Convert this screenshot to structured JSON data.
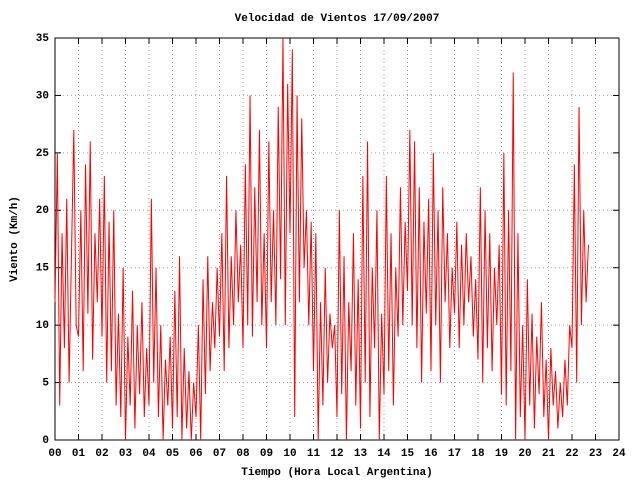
{
  "chart_data": {
    "type": "line",
    "title": "Velocidad de Vientos 17/09/2007",
    "x_label": "Tiempo (Hora Local Argentina)",
    "y_label": "Viento (Km/h)",
    "xlim": [
      0,
      24
    ],
    "ylim": [
      0,
      35
    ],
    "xticks": [
      {
        "value": 0,
        "label": "00"
      },
      {
        "value": 1,
        "label": "01"
      },
      {
        "value": 2,
        "label": "02"
      },
      {
        "value": 3,
        "label": "03"
      },
      {
        "value": 4,
        "label": "04"
      },
      {
        "value": 5,
        "label": "05"
      },
      {
        "value": 6,
        "label": "06"
      },
      {
        "value": 7,
        "label": "07"
      },
      {
        "value": 8,
        "label": "08"
      },
      {
        "value": 9,
        "label": "09"
      },
      10,
      11,
      12,
      13,
      14,
      15,
      16,
      17,
      18,
      19,
      20,
      21,
      22,
      23,
      24
    ],
    "yticks": [
      0,
      5,
      10,
      15,
      20,
      25,
      30,
      35
    ],
    "grid": true,
    "x": [
      0,
      0.1,
      0.2,
      0.3,
      0.4,
      0.5,
      0.6,
      0.7,
      0.8,
      0.9,
      1,
      1.1,
      1.2,
      1.3,
      1.4,
      1.5,
      1.6,
      1.7,
      1.8,
      1.9,
      2,
      2.1,
      2.2,
      2.3,
      2.4,
      2.5,
      2.6,
      2.7,
      2.8,
      2.9,
      3,
      3.1,
      3.2,
      3.3,
      3.4,
      3.5,
      3.6,
      3.7,
      3.8,
      3.9,
      4,
      4.1,
      4.2,
      4.3,
      4.4,
      4.5,
      4.6,
      4.7,
      4.8,
      4.9,
      5,
      5.1,
      5.2,
      5.3,
      5.4,
      5.5,
      5.6,
      5.7,
      5.8,
      5.9,
      6,
      6.1,
      6.2,
      6.3,
      6.4,
      6.5,
      6.6,
      6.7,
      6.8,
      6.9,
      7,
      7.1,
      7.2,
      7.3,
      7.4,
      7.5,
      7.6,
      7.7,
      7.8,
      7.9,
      8,
      8.1,
      8.2,
      8.3,
      8.4,
      8.5,
      8.6,
      8.7,
      8.8,
      8.9,
      9,
      9.1,
      9.2,
      9.3,
      9.4,
      9.5,
      9.6,
      9.7,
      9.8,
      9.9,
      10,
      10.1,
      10.2,
      10.3,
      10.4,
      10.5,
      10.6,
      10.7,
      10.8,
      10.9,
      11,
      11.1,
      11.2,
      11.3,
      11.4,
      11.5,
      11.6,
      11.7,
      11.8,
      11.9,
      12,
      12.1,
      12.2,
      12.3,
      12.4,
      12.5,
      12.6,
      12.7,
      12.8,
      12.9,
      13,
      13.1,
      13.2,
      13.3,
      13.4,
      13.5,
      13.6,
      13.7,
      13.8,
      13.9,
      14,
      14.1,
      14.2,
      14.3,
      14.4,
      14.5,
      14.6,
      14.7,
      14.8,
      14.9,
      15,
      15.1,
      15.2,
      15.3,
      15.4,
      15.5,
      15.6,
      15.7,
      15.8,
      15.9,
      16,
      16.1,
      16.2,
      16.3,
      16.4,
      16.5,
      16.6,
      16.7,
      16.8,
      16.9,
      17,
      17.1,
      17.2,
      17.3,
      17.4,
      17.5,
      17.6,
      17.7,
      17.8,
      17.9,
      18,
      18.1,
      18.2,
      18.3,
      18.4,
      18.5,
      18.6,
      18.7,
      18.8,
      18.9,
      19,
      19.1,
      19.2,
      19.3,
      19.4,
      19.5,
      19.6,
      19.7,
      19.8,
      19.9,
      20,
      20.1,
      20.2,
      20.3,
      20.4,
      20.5,
      20.6,
      20.7,
      20.8,
      20.9,
      21,
      21.1,
      21.2,
      21.3,
      21.4,
      21.5,
      21.6,
      21.7,
      21.8,
      21.9,
      22,
      22.1,
      22.2,
      22.3,
      22.4,
      22.5,
      22.6,
      22.7
    ],
    "series": [
      {
        "color": "#ff0000",
        "values": [
          12,
          25,
          3,
          18,
          8,
          21,
          5,
          16,
          27,
          10,
          9,
          20,
          6,
          24,
          11,
          26,
          7,
          18,
          12,
          21,
          9,
          23,
          5,
          19,
          6,
          20,
          3,
          11,
          2,
          15,
          0,
          9,
          3,
          13,
          1,
          10,
          4,
          12,
          2,
          8,
          3,
          21,
          5,
          15,
          2,
          10,
          0,
          7,
          3,
          9,
          1,
          13,
          2,
          16,
          0,
          8,
          1,
          6,
          0,
          5,
          2,
          10,
          0,
          14,
          4,
          16,
          6,
          12,
          8,
          15,
          9,
          18,
          6,
          23,
          8,
          16,
          10,
          20,
          12,
          17,
          8,
          24,
          10,
          30,
          9,
          22,
          12,
          27,
          10,
          18,
          8,
          26,
          12,
          20,
          10,
          29,
          14,
          35,
          10,
          31,
          18,
          34,
          2,
          30,
          12,
          28,
          15,
          20,
          10,
          19,
          6,
          18,
          0,
          12,
          3,
          15,
          5,
          11,
          8,
          10,
          2,
          20,
          4,
          16,
          0,
          12,
          6,
          18,
          3,
          14,
          1,
          23,
          5,
          26,
          2,
          15,
          8,
          20,
          0,
          11,
          4,
          23,
          6,
          18,
          3,
          15,
          9,
          22,
          10,
          19,
          13,
          27,
          10,
          26,
          8,
          22,
          5,
          19,
          11,
          21,
          6,
          25,
          10,
          20,
          5,
          22,
          12,
          18,
          8,
          15,
          11,
          19,
          8,
          17,
          10,
          18,
          12,
          16,
          9,
          14,
          7,
          22,
          5,
          20,
          8,
          18,
          6,
          15,
          10,
          17,
          4,
          25,
          3,
          20,
          6,
          32,
          0,
          18,
          2,
          10,
          0,
          14,
          3,
          11,
          1,
          9,
          4,
          12,
          2,
          7,
          0,
          8,
          3,
          6,
          1,
          5,
          2,
          7,
          3,
          10,
          8,
          24,
          5,
          29,
          10,
          20,
          12,
          17
        ]
      }
    ]
  }
}
